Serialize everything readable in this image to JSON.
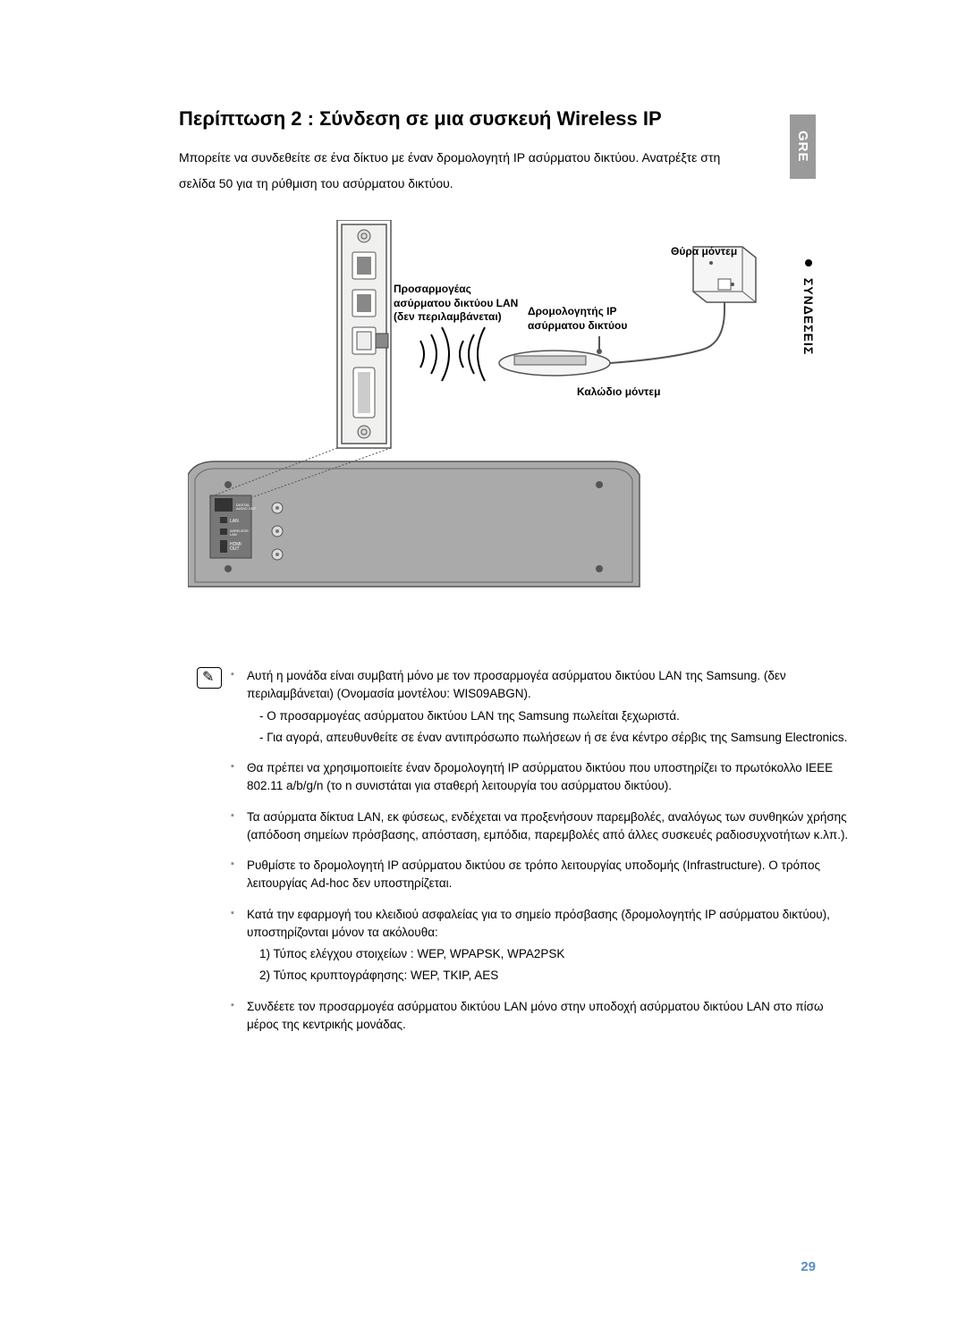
{
  "lang_tab": "GRE",
  "section_tab": "ΣΥΝΔΕΣΕΙΣ",
  "title": "Περίπτωση 2 : Σύνδεση σε μια συσκευή Wireless IP",
  "intro_line1": "Μπορείτε να συνδεθείτε σε ένα δίκτυο με έναν δρομολογητή IP ασύρματου δικτύου. Ανατρέξτε στη",
  "intro_line2": "σελίδα 50 για τη ρύθμιση του ασύρματου δικτύου.",
  "diagram": {
    "modem_port": "Θύρα μόντεμ",
    "adapter_l1": "Προσαρμογέας",
    "adapter_l2": "ασύρματου δικτύου LAN",
    "adapter_l3": "(δεν περιλαμβάνεται)",
    "router_l1": "Δρομολογητής IP",
    "router_l2": "ασύρματου δικτύου",
    "modem_cable": "Καλώδιο μόντεμ"
  },
  "notes": [
    {
      "text": "Αυτή η μονάδα είναι συμβατή μόνο με τον προσαρμογέα ασύρματου δικτύου LAN της Samsung. (δεν περιλαμβάνεται) (Ονομασία μοντέλου: WIS09ABGN).",
      "subs": [
        "- Ο προσαρμογέας ασύρματου δικτύου LAN της Samsung πωλείται ξεχωριστά.",
        "- Για αγορά, απευθυνθείτε σε έναν αντιπρόσωπο πωλήσεων ή σε ένα κέντρο σέρβις της Samsung Electronics."
      ]
    },
    {
      "text": "Θα πρέπει να χρησιμοποιείτε έναν δρομολογητή IP ασύρματου δικτύου που υποστηρίζει το πρωτόκολλο IEEE 802.11 a/b/g/n (το n συνιστάται για σταθερή λειτουργία του ασύρματου δικτύου).",
      "subs": []
    },
    {
      "text": "Τα ασύρματα δίκτυα LAN, εκ φύσεως, ενδέχεται να προξενήσουν παρεμβολές, αναλόγως των συνθηκών χρήσης (απόδοση σημείων πρόσβασης, απόσταση, εμπόδια, παρεμβολές από άλλες συσκευές ραδιοσυχνοτήτων κ.λπ.).",
      "subs": []
    },
    {
      "text": "Ρυθμίστε το δρομολογητή IP ασύρματου δικτύου σε τρόπο λειτουργίας υποδομής (Infrastructure). Ο τρόπος λειτουργίας Ad-hoc δεν υποστηρίζεται.",
      "subs": []
    },
    {
      "text": "Κατά την εφαρμογή του κλειδιού ασφαλείας για το σημείο πρόσβασης (δρομολογητής IP ασύρματου δικτύου), υποστηρίζονται μόνον τα ακόλουθα:",
      "subs": [
        "1) Τύπος ελέγχου στοιχείων : WEP, WPAPSK, WPA2PSK",
        "2) Τύπος κρυπτογράφησης: WEP, TKIP, AES"
      ]
    },
    {
      "text": "Συνδέετε τον προσαρμογέα ασύρματου δικτύου LAN μόνο στην υποδοχή ασύρματου δικτύου LAN στο πίσω μέρος της κεντρικής μονάδας.",
      "subs": []
    }
  ],
  "page_number": "29",
  "colors": {
    "tab_bg": "#9a9a9a",
    "tab_fg": "#ffffff",
    "pagenum": "#5a8cc7",
    "bullet": "#888888"
  }
}
